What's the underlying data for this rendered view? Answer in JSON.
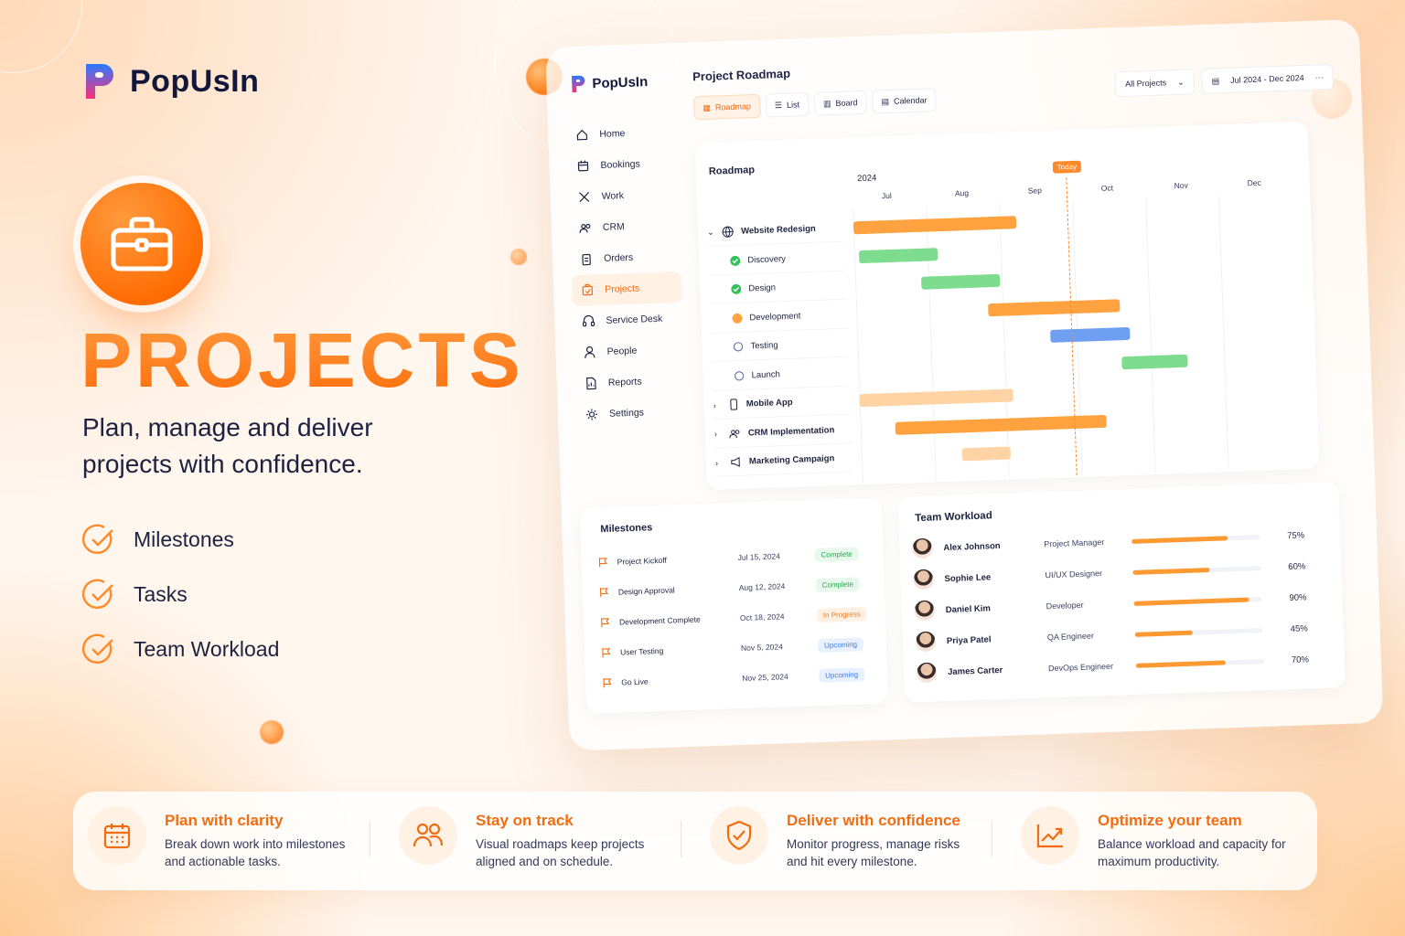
{
  "brand": {
    "name": "PopUsIn"
  },
  "hero": {
    "title": "PROJECTS",
    "subtitle": "Plan, manage and deliver projects with confidence.",
    "features": [
      "Milestones",
      "Tasks",
      "Team Workload"
    ]
  },
  "colors": {
    "accent": "#ff7a12",
    "green": "#7edc8f",
    "blue": "#6e9ff0"
  },
  "dashboard": {
    "sidebar": {
      "logo": "PopUsIn",
      "items": [
        {
          "label": "Home",
          "icon": "home-icon"
        },
        {
          "label": "Bookings",
          "icon": "calendar-icon"
        },
        {
          "label": "Work",
          "icon": "tools-icon"
        },
        {
          "label": "CRM",
          "icon": "users-icon"
        },
        {
          "label": "Orders",
          "icon": "clipboard-icon"
        },
        {
          "label": "Projects",
          "icon": "project-icon"
        },
        {
          "label": "Service Desk",
          "icon": "headset-icon"
        },
        {
          "label": "People",
          "icon": "person-icon"
        },
        {
          "label": "Reports",
          "icon": "report-icon"
        },
        {
          "label": "Settings",
          "icon": "gear-icon"
        }
      ]
    },
    "header": {
      "title": "Project Roadmap",
      "tabs": [
        "Roadmap",
        "List",
        "Board",
        "Calendar"
      ],
      "filter": "All Projects",
      "date_range": "Jul 2024 - Dec 2024",
      "more": "···"
    },
    "roadmap": {
      "title": "Roadmap",
      "year": "2024",
      "months": [
        "Jul",
        "Aug",
        "Sep",
        "Oct",
        "Nov",
        "Dec"
      ],
      "today_label": "Today",
      "today_pos": 0.487,
      "rows": [
        {
          "label": "Website Redesign",
          "kind": "group",
          "expanded": true,
          "start": 0.0,
          "end": 0.37,
          "color": "orange"
        },
        {
          "label": "Discovery",
          "kind": "task",
          "status": "done",
          "start": 0.01,
          "end": 0.19,
          "color": "green"
        },
        {
          "label": "Design",
          "kind": "task",
          "status": "done",
          "start": 0.15,
          "end": 0.33,
          "color": "green"
        },
        {
          "label": "Development",
          "kind": "task",
          "status": "progress",
          "start": 0.3,
          "end": 0.6,
          "color": "orange"
        },
        {
          "label": "Testing",
          "kind": "task",
          "status": "todo",
          "start": 0.44,
          "end": 0.62,
          "color": "blue"
        },
        {
          "label": "Launch",
          "kind": "task",
          "status": "todo",
          "start": 0.6,
          "end": 0.75,
          "color": "green"
        },
        {
          "label": "Mobile App",
          "kind": "group",
          "expanded": false,
          "start": 0.0,
          "end": 0.35,
          "color": "light"
        },
        {
          "label": "CRM Implementation",
          "kind": "group",
          "expanded": false,
          "start": 0.08,
          "end": 0.56,
          "color": "orange"
        },
        {
          "label": "Marketing Campaign",
          "kind": "group",
          "expanded": false,
          "start": 0.23,
          "end": 0.34,
          "color": "light"
        }
      ]
    },
    "milestones": {
      "title": "Milestones",
      "items": [
        {
          "name": "Project Kickoff",
          "date": "Jul 15, 2024",
          "status": "Complete",
          "type": "complete"
        },
        {
          "name": "Design Approval",
          "date": "Aug 12, 2024",
          "status": "Complete",
          "type": "complete"
        },
        {
          "name": "Development Complete",
          "date": "Oct 18, 2024",
          "status": "In Progress",
          "type": "progress"
        },
        {
          "name": "User Testing",
          "date": "Nov 5, 2024",
          "status": "Upcoming",
          "type": "upcoming"
        },
        {
          "name": "Go Live",
          "date": "Nov 25, 2024",
          "status": "Upcoming",
          "type": "upcoming"
        }
      ]
    },
    "workload": {
      "title": "Team Workload",
      "members": [
        {
          "name": "Alex Johnson",
          "role": "Project Manager",
          "percent": "75%",
          "value": 0.75
        },
        {
          "name": "Sophie Lee",
          "role": "UI/UX Designer",
          "percent": "60%",
          "value": 0.6
        },
        {
          "name": "Daniel Kim",
          "role": "Developer",
          "percent": "90%",
          "value": 0.9
        },
        {
          "name": "Priya Patel",
          "role": "QA Engineer",
          "percent": "45%",
          "value": 0.45
        },
        {
          "name": "James Carter",
          "role": "DevOps Engineer",
          "percent": "70%",
          "value": 0.7
        }
      ]
    }
  },
  "strip": [
    {
      "title": "Plan with clarity",
      "desc": "Break down work into milestones and actionable tasks.",
      "icon": "calendar-icon"
    },
    {
      "title": "Stay on track",
      "desc": "Visual roadmaps keep projects aligned and on schedule.",
      "icon": "team-icon"
    },
    {
      "title": "Deliver with confidence",
      "desc": "Monitor progress, manage risks and hit every milestone.",
      "icon": "shield-check-icon"
    },
    {
      "title": "Optimize your team",
      "desc": "Balance workload and capacity for maximum productivity.",
      "icon": "trend-chart-icon"
    }
  ]
}
